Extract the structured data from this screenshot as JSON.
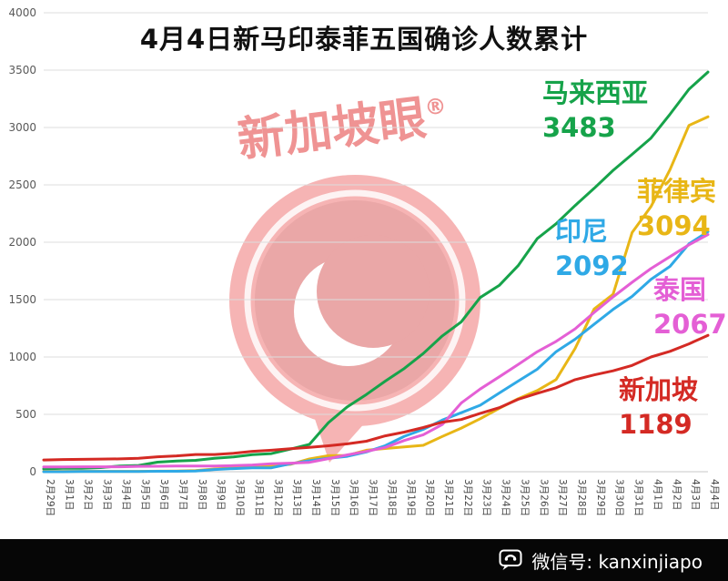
{
  "chart_data": {
    "type": "line",
    "title": "4月4日新马印泰菲五国确诊人数累计",
    "ylim": [
      0,
      4000
    ],
    "yticks": [
      0,
      500,
      1000,
      1500,
      2000,
      2500,
      3000,
      3500,
      4000
    ],
    "grid": true,
    "legend_position": "inline-right",
    "x": [
      "2月29日",
      "3月1日",
      "3月2日",
      "3月3日",
      "3月4日",
      "3月5日",
      "3月6日",
      "3月7日",
      "3月8日",
      "3月9日",
      "3月10日",
      "3月11日",
      "3月12日",
      "3月13日",
      "3月14日",
      "3月15日",
      "3月16日",
      "3月17日",
      "3月18日",
      "3月19日",
      "3月20日",
      "3月21日",
      "3月22日",
      "3月23日",
      "3月24日",
      "3月25日",
      "3月26日",
      "3月27日",
      "3月28日",
      "3月29日",
      "3月30日",
      "3月31日",
      "4月1日",
      "4月2日",
      "4月3日",
      "4月4日"
    ],
    "series": [
      {
        "key": "malaysia",
        "name": "马来西亚",
        "final_label": "3483",
        "color": "#16a34a",
        "values": [
          25,
          29,
          29,
          36,
          50,
          55,
          83,
          93,
          99,
          117,
          129,
          149,
          158,
          197,
          238,
          428,
          566,
          673,
          790,
          900,
          1030,
          1183,
          1306,
          1518,
          1624,
          1796,
          2031,
          2161,
          2320,
          2470,
          2626,
          2766,
          2908,
          3116,
          3333,
          3483
        ]
      },
      {
        "key": "philippines",
        "name": "菲律宾",
        "final_label": "3094",
        "color": "#e8b616",
        "values": [
          3,
          3,
          3,
          3,
          3,
          3,
          5,
          6,
          10,
          24,
          33,
          49,
          52,
          64,
          111,
          140,
          142,
          187,
          202,
          217,
          230,
          307,
          380,
          462,
          552,
          636,
          707,
          803,
          1075,
          1418,
          1546,
          2084,
          2311,
          2633,
          3018,
          3094
        ]
      },
      {
        "key": "indonesia",
        "name": "印尼",
        "final_label": "2092",
        "color": "#2fa9e6",
        "values": [
          0,
          0,
          2,
          2,
          2,
          2,
          4,
          4,
          6,
          19,
          27,
          34,
          34,
          69,
          96,
          117,
          134,
          172,
          227,
          309,
          369,
          450,
          514,
          579,
          686,
          790,
          893,
          1046,
          1155,
          1285,
          1414,
          1528,
          1677,
          1790,
          1986,
          2092
        ]
      },
      {
        "key": "thailand",
        "name": "泰国",
        "final_label": "2067",
        "color": "#e45fd5",
        "values": [
          42,
          42,
          43,
          43,
          43,
          47,
          48,
          50,
          50,
          50,
          53,
          59,
          70,
          75,
          82,
          114,
          147,
          177,
          212,
          272,
          322,
          411,
          599,
          721,
          827,
          934,
          1045,
          1136,
          1245,
          1388,
          1524,
          1651,
          1771,
          1875,
          1978,
          2067
        ]
      },
      {
        "key": "singapore",
        "name": "新加坡",
        "final_label": "1189",
        "color": "#d42a24",
        "values": [
          102,
          106,
          108,
          110,
          112,
          117,
          130,
          138,
          150,
          150,
          160,
          178,
          187,
          200,
          212,
          226,
          243,
          266,
          313,
          345,
          385,
          432,
          455,
          509,
          558,
          631,
          683,
          732,
          802,
          844,
          879,
          926,
          1000,
          1049,
          1114,
          1189
        ]
      }
    ]
  },
  "watermark": {
    "text": "新加坡眼",
    "registered": "®"
  },
  "footer": {
    "wechat_label": "微信号: kanxinjiapo"
  }
}
